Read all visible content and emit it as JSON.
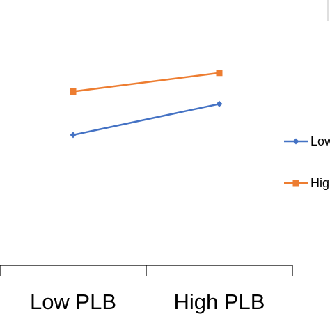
{
  "chart_data": {
    "type": "line",
    "categories": [
      "Low PLB",
      "High PLB"
    ],
    "series": [
      {
        "name": "Low",
        "values": [
          4.2,
          5.2
        ],
        "color": "#4472C4",
        "marker": "diamond"
      },
      {
        "name": "Hig",
        "values": [
          5.6,
          6.2
        ],
        "color": "#ED7D31",
        "marker": "square"
      }
    ],
    "ylim": [
      0,
      9
    ],
    "grid": false,
    "legend": "right"
  }
}
